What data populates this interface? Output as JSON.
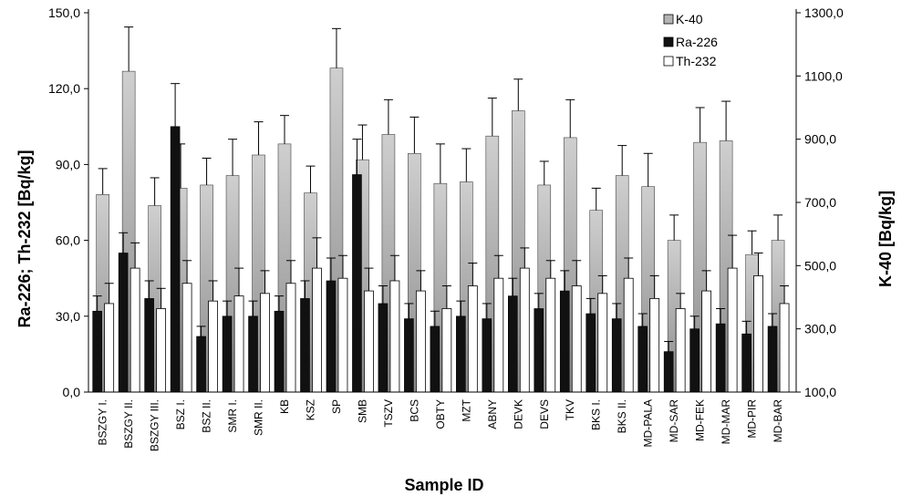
{
  "chart_data": {
    "type": "bar",
    "xlabel": "Sample ID",
    "ylabel_left": "Ra-226; Th-232 [Bq/kg]",
    "ylabel_right": "K-40 [Bq/kg]",
    "ylim_left": [
      0,
      150
    ],
    "yticks_left": [
      "0,0",
      "30,0",
      "60,0",
      "90,0",
      "120,0",
      "150,0"
    ],
    "ylim_right": [
      100,
      1300
    ],
    "yticks_right": [
      "100,0",
      "300,0",
      "500,0",
      "700,0",
      "900,0",
      "1100,0",
      "1300,0"
    ],
    "legend_position": "top-right",
    "error_bars": true,
    "categories": [
      "BSZGY I.",
      "BSZGY II.",
      "BSZGY III.",
      "BSZ I.",
      "BSZ II.",
      "SMR I.",
      "SMR II.",
      "KB",
      "KSZ",
      "SP",
      "SMB",
      "TSZV",
      "BCS",
      "OBTY",
      "MZT",
      "ABNY",
      "DEVK",
      "DEVS",
      "TKV",
      "BKS I.",
      "BKS II.",
      "MD-PALA",
      "MD-SAR",
      "MD-FEK",
      "MD-MAR",
      "MD-PIR",
      "MD-BAR"
    ],
    "series": [
      {
        "name": "K-40",
        "axis": "right",
        "color": "#b4b4b4",
        "values": [
          725,
          1115,
          690,
          745,
          755,
          785,
          850,
          885,
          730,
          1125,
          835,
          915,
          855,
          760,
          765,
          910,
          990,
          755,
          905,
          675,
          785,
          750,
          580,
          890,
          895,
          535,
          580
        ],
        "errors": [
          82,
          140,
          88,
          140,
          85,
          115,
          105,
          90,
          85,
          125,
          110,
          110,
          115,
          125,
          105,
          120,
          100,
          75,
          120,
          70,
          95,
          105,
          80,
          110,
          125,
          75,
          80
        ]
      },
      {
        "name": "Ra-226",
        "axis": "left",
        "color": "#111111",
        "values": [
          32,
          55,
          37,
          105,
          22,
          30,
          30,
          32,
          37,
          44,
          86,
          35,
          29,
          26,
          30,
          29,
          38,
          33,
          40,
          31,
          29,
          26,
          16,
          25,
          27,
          23,
          26
        ],
        "errors": [
          6,
          8,
          7,
          17,
          4,
          6,
          6,
          6,
          7,
          9,
          14,
          7,
          6,
          6,
          6,
          6,
          7,
          6,
          8,
          6,
          6,
          5,
          4,
          5,
          6,
          5,
          5
        ]
      },
      {
        "name": "Th-232",
        "axis": "left",
        "color": "#ffffff",
        "values": [
          35,
          49,
          33,
          43,
          36,
          38,
          39,
          43,
          49,
          45,
          40,
          44,
          40,
          33,
          42,
          45,
          49,
          45,
          42,
          39,
          45,
          37,
          33,
          40,
          49,
          46,
          35
        ],
        "errors": [
          8,
          10,
          8,
          9,
          8,
          11,
          9,
          9,
          12,
          9,
          9,
          10,
          8,
          9,
          9,
          9,
          8,
          7,
          10,
          7,
          8,
          9,
          6,
          8,
          13,
          9,
          7
        ]
      }
    ]
  }
}
